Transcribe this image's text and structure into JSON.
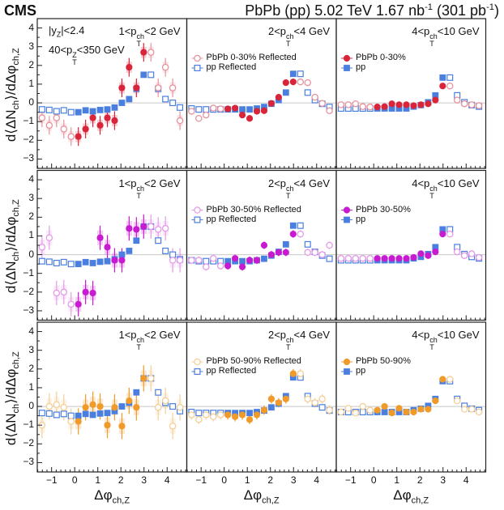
{
  "header": {
    "experiment": "CMS",
    "title": {
      "part1": "PbPb (pp) 5.02 TeV 1.67 nb",
      "sup1": "-1",
      "part2": " (301 pb",
      "sup2": "-1",
      "part3": ")"
    }
  },
  "cuts": {
    "rapidity": {
      "pre": "|y",
      "sub": "Z",
      "post": "|<2.4"
    },
    "z_pt": {
      "pre": "40<p",
      "sup": "Z",
      "sub": "T",
      "post": "<350 GeV"
    }
  },
  "chart_data": {
    "type": "scatter",
    "ylabel": {
      "pre": "d⟨ΔN",
      "sub": "ch",
      "mid": "⟩/dΔφ",
      "sub2": "ch,Z"
    },
    "xlabel": {
      "pre": "Δφ",
      "sub": "ch,Z"
    },
    "xlim": [
      -1.62,
      4.85
    ],
    "ylim": [
      -3.5,
      4.5
    ],
    "x_ticks": [
      -1,
      0,
      1,
      2,
      3,
      4
    ],
    "y_ticks": [
      -3,
      -2,
      -1,
      0,
      1,
      2,
      3,
      4
    ],
    "zero_line": true,
    "x": [
      0.157,
      0.471,
      0.785,
      1.1,
      1.414,
      1.728,
      2.042,
      2.356,
      2.67,
      2.985
    ],
    "pp": {
      "name": "pp",
      "reflected_name": "pp Reflected",
      "color": "#4a7fdf"
    },
    "pt_bins": [
      {
        "label": {
          "pre": "1<p",
          "sup": "ch",
          "sub": "T",
          "post": "<2 GeV"
        },
        "pp_values": [
          -0.5,
          -0.4,
          -0.45,
          -0.38,
          -0.35,
          -0.25,
          0.0,
          0.2,
          0.75,
          1.5
        ],
        "pp_err": 0.08
      },
      {
        "label": {
          "pre": "2<p",
          "sup": "ch",
          "sub": "T",
          "post": "<4 GeV"
        },
        "pp_values": [
          -0.35,
          -0.35,
          -0.35,
          -0.35,
          -0.3,
          -0.22,
          -0.05,
          0.15,
          0.55,
          1.55
        ],
        "pp_err": 0.06
      },
      {
        "label": {
          "pre": "4<p",
          "sup": "ch",
          "sub": "T",
          "post": "<10 GeV"
        },
        "pp_values": [
          -0.3,
          -0.3,
          -0.3,
          -0.3,
          -0.3,
          -0.2,
          -0.12,
          0.03,
          0.4,
          1.35
        ],
        "pp_err": 0.04
      }
    ],
    "centralities": [
      {
        "name": "PbPb 0-30%",
        "reflected_name": "PbPb 0-30% Reflected",
        "color": "#d9253a",
        "reflected_color": "#e8939c",
        "panels": [
          {
            "values": [
              -1.8,
              -1.4,
              -0.8,
              -1.2,
              -0.8,
              -0.95,
              0.8,
              1.9,
              0.8,
              2.7
            ],
            "err": 0.5
          },
          {
            "values": [
              -0.32,
              -0.28,
              -0.65,
              -0.83,
              -0.45,
              -0.42,
              -0.03,
              0.3,
              1.08,
              1.12
            ],
            "err": 0.17
          },
          {
            "values": [
              -0.22,
              -0.2,
              -0.05,
              -0.1,
              -0.1,
              -0.15,
              -0.1,
              -0.05,
              0.15,
              0.9
            ],
            "err": 0.06
          }
        ]
      },
      {
        "name": "PbPb 30-50%",
        "reflected_name": "PbPb 30-50% Reflected",
        "color": "#c81ad0",
        "reflected_color": "#e49be8",
        "panels": [
          {
            "values": [
              -2.65,
              -2.0,
              -2.05,
              0.9,
              0.4,
              -0.3,
              -0.3,
              1.4,
              1.35,
              1.5
            ],
            "err": 0.65
          },
          {
            "values": [
              -0.6,
              -0.2,
              -0.65,
              -0.3,
              -0.3,
              0.5,
              0.0,
              0.12,
              0.12,
              1.1
            ],
            "err": 0.2
          },
          {
            "values": [
              -0.2,
              -0.2,
              -0.2,
              -0.2,
              -0.2,
              -0.15,
              0.05,
              -0.05,
              0.15,
              1.1
            ],
            "err": 0.06
          }
        ]
      },
      {
        "name": "PbPb 50-90%",
        "reflected_name": "PbPb 50-90% Reflected",
        "color": "#f09a2a",
        "reflected_color": "#f5cf98",
        "panels": [
          {
            "values": [
              -0.8,
              -0.05,
              0.1,
              0.0,
              -1.0,
              -0.05,
              -1.05,
              0.3,
              -0.05,
              1.5
            ],
            "err": 0.7
          },
          {
            "values": [
              -0.45,
              -0.55,
              -0.45,
              -0.7,
              -0.45,
              -0.2,
              0.4,
              0.2,
              0.4,
              1.75
            ],
            "err": 0.25
          },
          {
            "values": [
              -0.2,
              0.0,
              -0.35,
              -0.1,
              -0.3,
              -0.3,
              -0.15,
              -0.15,
              0.3,
              1.45
            ],
            "err": 0.08
          }
        ]
      }
    ]
  }
}
